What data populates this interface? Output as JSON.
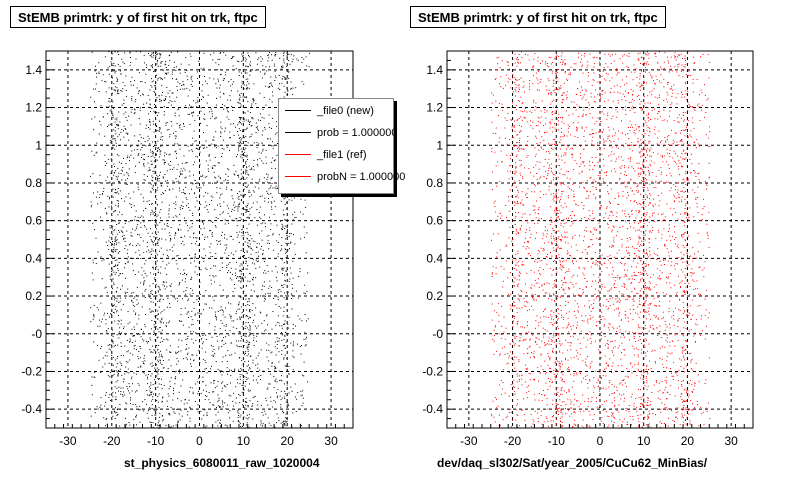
{
  "chart_data": [
    {
      "type": "scatter",
      "title": "StEMB primtrk: y of first hit on trk, ftpc",
      "xlabel": "st_physics_6080011_raw_1020004",
      "ylabel": "",
      "xlim": [
        -35,
        35
      ],
      "ylim": [
        -0.5,
        1.5
      ],
      "x_ticks": [
        -30,
        -20,
        -10,
        0,
        10,
        20,
        30
      ],
      "y_ticks": [
        -0.4,
        -0.2,
        0,
        0.2,
        0.4,
        0.6,
        0.8,
        1,
        1.2,
        1.4
      ],
      "y_tick_labels": [
        "-0.4",
        "-0.2",
        "-0",
        "0.2",
        "0.4",
        "0.6",
        "0.8",
        "1",
        "1.2",
        "1.4"
      ],
      "grid": true,
      "series_color": "#000000",
      "x_range_of_points": [
        -25,
        25
      ],
      "legend": {
        "placement": "top-right",
        "entries": [
          {
            "label": "_file0 (new)",
            "color": "#000000"
          },
          {
            "label": "prob = 1.000000",
            "color": "#000000"
          },
          {
            "label": "_file1 (ref)",
            "color": "#ff0000"
          },
          {
            "label": "probN = 1.000000",
            "color": "#ff0000"
          }
        ]
      }
    },
    {
      "type": "scatter",
      "title": "StEMB primtrk: y of first hit on trk, ftpc",
      "xlabel": "dev/daq_sl302/Sat/year_2005/CuCu62_MinBias/",
      "ylabel": "",
      "xlim": [
        -35,
        35
      ],
      "ylim": [
        -0.5,
        1.5
      ],
      "x_ticks": [
        -30,
        -20,
        -10,
        0,
        10,
        20,
        30
      ],
      "y_ticks": [
        -0.4,
        -0.2,
        0,
        0.2,
        0.4,
        0.6,
        0.8,
        1,
        1.2,
        1.4
      ],
      "y_tick_labels": [
        "-0.4",
        "-0.2",
        "-0",
        "0.2",
        "0.4",
        "0.6",
        "0.8",
        "1",
        "1.2",
        "1.4"
      ],
      "grid": true,
      "series_color": "#ff0000",
      "x_range_of_points": [
        -25,
        25
      ]
    }
  ]
}
